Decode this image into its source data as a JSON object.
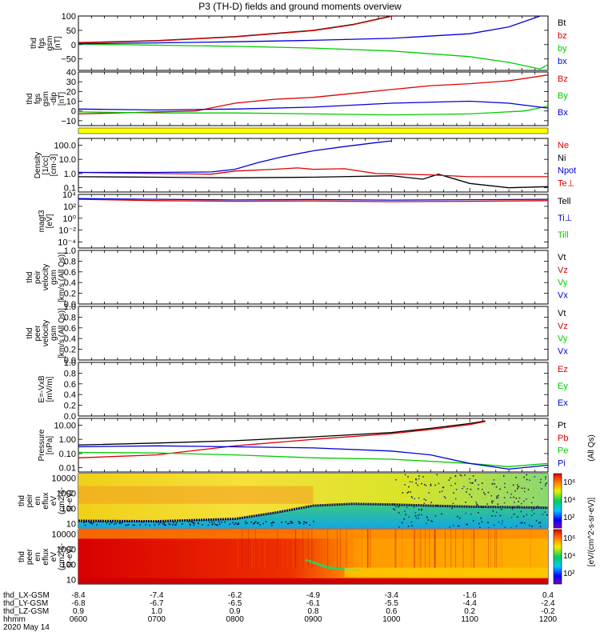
{
  "title": "P3 (TH-D) fields and ground moments overview",
  "chart_data": [
    {
      "id": "bgsm",
      "type": "line",
      "ylabel": [
        "thd",
        "fgs",
        "gsm",
        "[nT]"
      ],
      "ylim": [
        -90,
        100
      ],
      "yticks": [
        "100",
        "50",
        "0",
        "−50"
      ],
      "ytick_values": [
        100,
        50,
        0,
        -50
      ],
      "legend": [
        {
          "name": "Bt",
          "color": "#000000"
        },
        {
          "name": "bz",
          "color": "#dd0000"
        },
        {
          "name": "by",
          "color": "#00cc00"
        },
        {
          "name": "bx",
          "color": "#0000dd"
        }
      ],
      "series": [
        {
          "name": "Bt",
          "color": "#000000",
          "x": [
            6,
            7,
            8,
            9,
            9.5,
            10
          ],
          "y": [
            7,
            14,
            28,
            50,
            70,
            100
          ]
        },
        {
          "name": "bz",
          "color": "#dd0000",
          "x": [
            6,
            7,
            8,
            9,
            9.5,
            10
          ],
          "y": [
            6,
            13,
            27,
            49,
            69,
            99
          ]
        },
        {
          "name": "by",
          "color": "#00cc00",
          "x": [
            6,
            7,
            8,
            9,
            10,
            11,
            11.5,
            11.9,
            12
          ],
          "y": [
            2,
            -2,
            -6,
            -12,
            -22,
            -42,
            -62,
            -85,
            -70
          ]
        },
        {
          "name": "bx",
          "color": "#0000dd",
          "x": [
            6,
            7,
            8,
            9,
            10,
            11,
            11.5,
            11.9
          ],
          "y": [
            3,
            6,
            10,
            15,
            22,
            38,
            62,
            100
          ]
        }
      ]
    },
    {
      "id": "bdgsm",
      "type": "line",
      "ylabel": [
        "thd",
        "fgs",
        "gsm",
        "-dip",
        "[nT]"
      ],
      "ylim": [
        -15,
        40
      ],
      "yticks": [
        "40",
        "30",
        "20",
        "10",
        "0",
        "−10"
      ],
      "ytick_values": [
        40,
        30,
        20,
        10,
        0,
        -10
      ],
      "legend": [
        {
          "name": "Bz",
          "color": "#dd0000"
        },
        {
          "name": "By",
          "color": "#00cc00"
        },
        {
          "name": "Bx",
          "color": "#0000dd"
        }
      ],
      "series": [
        {
          "name": "Bz",
          "color": "#dd0000",
          "x": [
            6,
            6.5,
            7,
            7.5,
            8,
            8.5,
            9,
            9.5,
            10,
            10.5,
            11,
            11.5,
            12
          ],
          "y": [
            -3,
            -2,
            -1,
            0,
            8,
            12,
            14,
            18,
            22,
            26,
            28,
            31,
            37
          ]
        },
        {
          "name": "By",
          "color": "#00cc00",
          "x": [
            6,
            7,
            8,
            9,
            10,
            11,
            11.7,
            12
          ],
          "y": [
            -1,
            -2,
            -2,
            -3,
            -4,
            -3,
            0,
            5
          ]
        },
        {
          "name": "Bx",
          "color": "#0000dd",
          "x": [
            6,
            7,
            8,
            9,
            10,
            11,
            11.5,
            12
          ],
          "y": [
            2,
            1,
            2,
            4,
            8,
            10,
            8,
            3
          ]
        }
      ]
    },
    {
      "id": "density",
      "type": "line",
      "log": true,
      "ylabel": [
        "Density",
        "[1/cc]",
        "[cm-3]"
      ],
      "ylim": [
        0.05,
        300
      ],
      "yticks": [
        "100.0",
        "10.0",
        "1.0",
        "0.1"
      ],
      "ytick_values": [
        100,
        10,
        1,
        0.1
      ],
      "legend": [
        {
          "name": "Ne",
          "color": "#dd0000"
        },
        {
          "name": "Ni",
          "color": "#000000"
        },
        {
          "name": "Npot",
          "color": "#0000dd"
        },
        {
          "name": "Te⊥",
          "color": "#dd0000"
        }
      ],
      "series": [
        {
          "name": "Ni",
          "color": "#000000",
          "x": [
            6,
            7,
            8,
            9,
            10,
            10.4,
            10.6,
            11,
            11.5,
            12
          ],
          "y": [
            0.6,
            0.55,
            0.5,
            0.55,
            0.7,
            0.4,
            0.9,
            0.2,
            0.1,
            0.12
          ]
        },
        {
          "name": "Ne",
          "color": "#dd0000",
          "x": [
            6,
            7,
            7.7,
            8,
            8.5,
            8.8,
            9,
            9.4,
            9.8,
            10.5,
            11,
            12
          ],
          "y": [
            1.2,
            1.0,
            0.9,
            1.5,
            2.0,
            2.5,
            2.0,
            2.2,
            1.0,
            0.8,
            0.6,
            0.6
          ]
        },
        {
          "name": "Npot",
          "color": "#0000dd",
          "x": [
            6,
            7,
            7.7,
            8,
            8.3,
            8.6,
            9,
            9.4,
            9.8,
            10
          ],
          "y": [
            1.2,
            1.2,
            1.3,
            2.0,
            6,
            15,
            40,
            80,
            150,
            200
          ]
        }
      ]
    },
    {
      "id": "temp",
      "type": "line",
      "log": true,
      "ylabel": [
        "magt3",
        "[eV]"
      ],
      "ylim": [
        1e-05,
        10000
      ],
      "yticks": [
        "10⁴",
        "10²",
        "10⁰",
        "10⁻²",
        "10⁻⁴"
      ],
      "ytick_values": [
        10000,
        100,
        1,
        0.01,
        0.0001
      ],
      "legend": [
        {
          "name": "Tell",
          "color": "#000000"
        },
        {
          "name": "Ti⊥",
          "color": "#0000dd"
        },
        {
          "name": "Till",
          "color": "#00cc00"
        }
      ],
      "series": [
        {
          "name": "T",
          "color": "#dd0000",
          "x": [
            6,
            7,
            8,
            9,
            10,
            11,
            12
          ],
          "y": [
            1500,
            900,
            700,
            800,
            600,
            700,
            900
          ]
        },
        {
          "name": "T2",
          "color": "#0000dd",
          "x": [
            6,
            7,
            8,
            9,
            10,
            11,
            12
          ],
          "y": [
            2000,
            1500,
            1200,
            1400,
            1100,
            1300,
            1500
          ]
        }
      ]
    },
    {
      "id": "vi",
      "type": "line",
      "ylabel": [
        "thd",
        "peir",
        "velocity",
        "gsm",
        "[km/s (All Qs)]"
      ],
      "ylim": [
        0,
        1
      ],
      "yticks": [
        "1.0",
        "0.8",
        "0.6",
        "0.4",
        "0.2",
        "0.0"
      ],
      "ytick_values": [
        1,
        0.8,
        0.6,
        0.4,
        0.2,
        0
      ],
      "legend": [
        {
          "name": "Vt",
          "color": "#000000"
        },
        {
          "name": "Vz",
          "color": "#dd0000"
        },
        {
          "name": "Vy",
          "color": "#00cc00"
        },
        {
          "name": "Vx",
          "color": "#0000dd"
        }
      ],
      "series": []
    },
    {
      "id": "ve",
      "type": "line",
      "ylabel": [
        "thd",
        "peer",
        "velocity",
        "gsm",
        "[km/s (All Qs)]"
      ],
      "ylim": [
        0,
        1
      ],
      "yticks": [
        "1.0",
        "0.8",
        "0.6",
        "0.4",
        "0.2",
        "0.0"
      ],
      "ytick_values": [
        1,
        0.8,
        0.6,
        0.4,
        0.2,
        0
      ],
      "legend": [
        {
          "name": "Vt",
          "color": "#000000"
        },
        {
          "name": "Vz",
          "color": "#dd0000"
        },
        {
          "name": "Vy",
          "color": "#00cc00"
        },
        {
          "name": "Vx",
          "color": "#0000dd"
        }
      ],
      "series": []
    },
    {
      "id": "efield",
      "type": "line",
      "ylabel": [
        "E=-VxB",
        "[mV/m]"
      ],
      "ylim": [
        0,
        1
      ],
      "yticks": [
        "1.0",
        "0.8",
        "0.6",
        "0.4",
        "0.2",
        "0.0"
      ],
      "ytick_values": [
        1,
        0.8,
        0.6,
        0.4,
        0.2,
        0
      ],
      "legend": [
        {
          "name": "Ez",
          "color": "#dd0000"
        },
        {
          "name": "Ey",
          "color": "#00cc00"
        },
        {
          "name": "Ex",
          "color": "#0000dd"
        }
      ],
      "series": []
    },
    {
      "id": "pressure",
      "type": "line",
      "log": true,
      "ylabel": [
        "Pressure",
        "[nPa]"
      ],
      "ylim": [
        0.005,
        30
      ],
      "yticks": [
        "10.00",
        "1.00",
        "0.10",
        "0.01"
      ],
      "ytick_values": [
        10,
        1,
        0.1,
        0.01
      ],
      "legend": [
        {
          "name": "Pt",
          "color": "#000000"
        },
        {
          "name": "Pb",
          "color": "#dd0000"
        },
        {
          "name": "Pe",
          "color": "#00cc00"
        },
        {
          "name": "Pi",
          "color": "#0000dd"
        }
      ],
      "series": [
        {
          "name": "Pt",
          "color": "#000000",
          "x": [
            6,
            7,
            8,
            9,
            10,
            10.5,
            11,
            11.2
          ],
          "y": [
            0.4,
            0.55,
            0.8,
            1.5,
            3,
            6,
            13,
            20
          ]
        },
        {
          "name": "Pb",
          "color": "#dd0000",
          "x": [
            6,
            7,
            8,
            9,
            10,
            10.5,
            11,
            11.2
          ],
          "y": [
            0.05,
            0.08,
            0.35,
            1.0,
            2.5,
            5,
            11,
            18
          ]
        },
        {
          "name": "Pe",
          "color": "#00cc00",
          "x": [
            6,
            7,
            8,
            9,
            10,
            11,
            11.5,
            12
          ],
          "y": [
            0.12,
            0.11,
            0.08,
            0.05,
            0.04,
            0.02,
            0.012,
            0.02
          ]
        },
        {
          "name": "Pi",
          "color": "#0000dd",
          "x": [
            6,
            7,
            8,
            9,
            10,
            10.5,
            11,
            11.5,
            12
          ],
          "y": [
            0.3,
            0.35,
            0.3,
            0.25,
            0.15,
            0.08,
            0.02,
            0.008,
            0.015
          ]
        }
      ]
    },
    {
      "id": "peir_spec",
      "type": "heatmap",
      "log": true,
      "ylabel": [
        "thd",
        "peir",
        "en",
        "eflux",
        "eV",
        "(cm2-s-",
        "sr-eV)"
      ],
      "ylim": [
        5,
        20000
      ],
      "yticks": [
        "10000",
        "1000",
        "100",
        "10"
      ],
      "ytick_values": [
        10000,
        1000,
        100,
        10
      ],
      "boundary_x": [
        6,
        7,
        8,
        8.5,
        9,
        9.5,
        10,
        10.5,
        11,
        11.5,
        12
      ],
      "boundary_y": [
        15,
        14,
        20,
        50,
        150,
        200,
        180,
        150,
        130,
        120,
        110
      ]
    },
    {
      "id": "peer_spec",
      "type": "heatmap",
      "log": true,
      "ylabel": [
        "thd",
        "peer",
        "en",
        "eflux",
        "eV",
        "(cm2-s-",
        "sr-eV)"
      ],
      "ylim": [
        5,
        20000
      ],
      "yticks": [
        "10000",
        "1000",
        "100",
        "10"
      ],
      "ytick_values": [
        10000,
        1000,
        100,
        10
      ]
    }
  ],
  "right_labels": {
    "spec_tag": "(All Qs)",
    "colorbar_label": "[eV/(cm^2-s-sr-eV)]",
    "colorbar_ticks_top": [
      "10⁶",
      "10⁴",
      "10²"
    ],
    "colorbar_ticks_bottom": [
      "10⁶",
      "10⁴",
      "10²"
    ]
  },
  "x_axis": {
    "rows": [
      {
        "label": "thd_LX-GSM",
        "values": [
          "-8.4",
          "-7.4",
          "-6.2",
          "-4.9",
          "-3.4",
          "-1.6",
          "0.4"
        ]
      },
      {
        "label": "thd_LY-GSM",
        "values": [
          "-6.8",
          "-6.7",
          "-6.5",
          "-6.1",
          "-5.5",
          "-4.4",
          "-2.4"
        ]
      },
      {
        "label": "thd_LZ-GSM",
        "values": [
          "0.9",
          "1.0",
          "0.9",
          "0.8",
          "0.6",
          "0.2",
          "-0.2"
        ]
      },
      {
        "label": "hhmm",
        "values": [
          "0600",
          "0700",
          "0800",
          "0900",
          "1000",
          "1100",
          "1200"
        ]
      }
    ],
    "date": "2020 May 14",
    "xlim": [
      6,
      12
    ]
  }
}
